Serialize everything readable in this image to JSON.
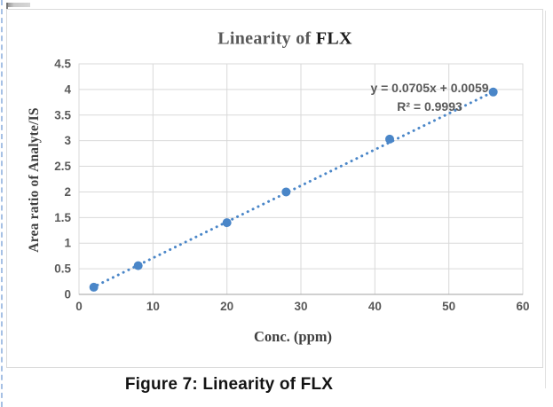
{
  "figure": {
    "caption": "Figure 7: Linearity of FLX"
  },
  "chart_data": {
    "type": "scatter",
    "title": "Linearity of FLX",
    "title_parts": {
      "prefix": "Linearity of ",
      "strong": "FLX"
    },
    "xlabel": "Conc. (ppm)",
    "ylabel": "Area ratio of Analyte/IS",
    "xlim": [
      0,
      60
    ],
    "ylim": [
      0,
      4.5
    ],
    "x_ticks": [
      0,
      10,
      20,
      30,
      40,
      50,
      60
    ],
    "y_ticks": [
      0,
      0.5,
      1,
      1.5,
      2,
      2.5,
      3,
      3.5,
      4,
      4.5
    ],
    "grid": true,
    "legend": "none",
    "points": [
      {
        "x": 2,
        "y": 0.14
      },
      {
        "x": 8,
        "y": 0.56
      },
      {
        "x": 20,
        "y": 1.4
      },
      {
        "x": 28,
        "y": 2.0
      },
      {
        "x": 42,
        "y": 3.03
      },
      {
        "x": 56,
        "y": 3.95
      }
    ],
    "trendline": {
      "style": "dotted",
      "slope": 0.0705,
      "intercept": 0.0059,
      "x_start": 1.8,
      "x_end": 56,
      "equation": "y = 0.0705x + 0.0059",
      "r_squared": "R² = 0.9993"
    },
    "colors": {
      "marker": "#4a86c8",
      "trendline": "#4a86c8",
      "gridline": "#d9d9d9",
      "plot_border": "#d9d9d9",
      "axis_line": "#b3b3b3",
      "tick_text": "#595959",
      "axis_title_text": "#3f3f3f",
      "title_text": "#595959",
      "title_strong_text": "#1c1c1c"
    }
  }
}
